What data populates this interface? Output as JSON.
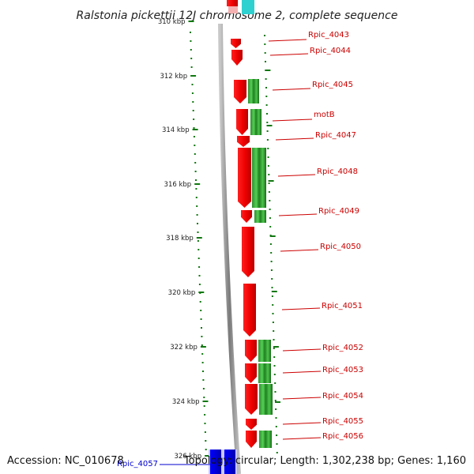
{
  "title": "Ralstonia pickettii 12J chromosome 2, complete sequence",
  "footer": {
    "accession": "Accession: NC_010678",
    "summary": "Topology: circular; Length: 1,302,238 bp; Genes: 1,160"
  },
  "colors": {
    "reverse_gene": "#ff0000",
    "forward_gene": "#22a022",
    "highlight_gene": "#0000ff",
    "label_text": "#cc0000",
    "highlight_label": "#0000cc",
    "backbone": "#8c8c8c",
    "tick": "#117711"
  },
  "scale": {
    "tick_labels": [
      "310 kbp",
      "312 kbp",
      "314 kbp",
      "316 kbp",
      "318 kbp",
      "320 kbp",
      "322 kbp",
      "324 kbp",
      "326 kbp"
    ]
  },
  "genes": [
    {
      "label": "Rpic_4043",
      "strand": "reverse"
    },
    {
      "label": "Rpic_4044",
      "strand": "reverse"
    },
    {
      "label": "Rpic_4045",
      "strand": "reverse"
    },
    {
      "label": "motB",
      "strand": "reverse"
    },
    {
      "label": "Rpic_4047",
      "strand": "reverse"
    },
    {
      "label": "Rpic_4048",
      "strand": "reverse"
    },
    {
      "label": "Rpic_4049",
      "strand": "reverse"
    },
    {
      "label": "Rpic_4050",
      "strand": "reverse"
    },
    {
      "label": "Rpic_4051",
      "strand": "reverse"
    },
    {
      "label": "Rpic_4052",
      "strand": "reverse"
    },
    {
      "label": "Rpic_4053",
      "strand": "reverse"
    },
    {
      "label": "Rpic_4054",
      "strand": "reverse"
    },
    {
      "label": "Rpic_4055",
      "strand": "reverse"
    },
    {
      "label": "Rpic_4056",
      "strand": "reverse"
    },
    {
      "label": "Rpic_4057",
      "strand": "highlight"
    }
  ]
}
